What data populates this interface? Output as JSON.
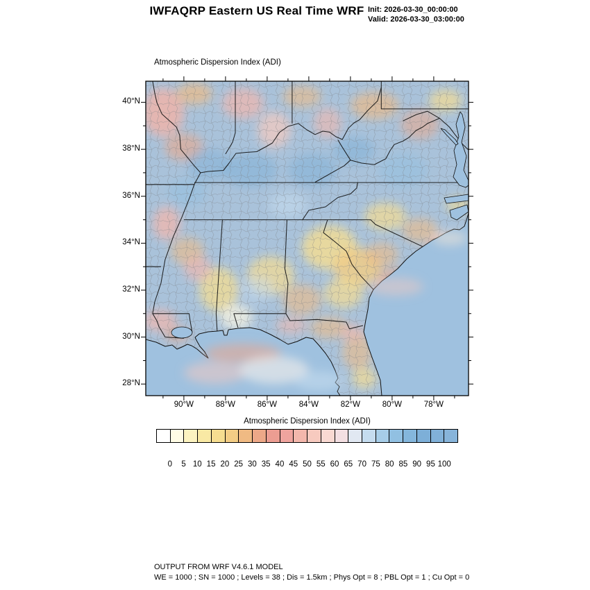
{
  "header": {
    "title": "IWFAQRP Eastern US Real Time WRF",
    "init_label": "Init: 2026-03-30_00:00:00",
    "valid_label": "Valid: 2026-03-30_03:00:00"
  },
  "map": {
    "subtitle": "Atmospheric Dispersion Index   (ADI)",
    "lat_labels": [
      "40°N",
      "38°N",
      "36°N",
      "34°N",
      "32°N",
      "30°N",
      "28°N"
    ],
    "lon_labels": [
      "90°W",
      "88°W",
      "86°W",
      "84°W",
      "82°W",
      "80°W",
      "78°W"
    ]
  },
  "colorbar": {
    "label": "Atmospheric Dispersion Index  (ADI)",
    "tick_labels": [
      "0",
      "5",
      "10",
      "15",
      "20",
      "25",
      "30",
      "35",
      "40",
      "45",
      "50",
      "55",
      "60",
      "65",
      "70",
      "75",
      "80",
      "85",
      "90",
      "95",
      "100"
    ],
    "colors": [
      "#ffffff",
      "#fffce5",
      "#fcf3c0",
      "#f9e9a4",
      "#f6dd90",
      "#f3cd85",
      "#f0ba83",
      "#eda888",
      "#ec9d92",
      "#efa49e",
      "#f3b7ac",
      "#f7cabf",
      "#f9d9d2",
      "#f3dfe2",
      "#e1e8f2",
      "#c5dcef",
      "#a7cde8",
      "#91c0e2",
      "#84b6dc",
      "#7dafd8",
      "#81b1d9",
      "#87b4da"
    ]
  },
  "footer": {
    "line1": "OUTPUT FROM WRF V4.6.1 MODEL",
    "line2": "WE = 1000 ; SN = 1000 ; Levels = 38 ; Dis = 1.5km ; Phys Opt = 8 ; PBL Opt = 1 ; Cu Opt = 0"
  },
  "chart_data": {
    "type": "heatmap",
    "title": "Atmospheric Dispersion Index (ADI)",
    "model_run": "IWFAQRP Eastern US Real Time WRF",
    "init_time": "2026-03-30_00:00:00",
    "valid_time": "2026-03-30_03:00:00",
    "x_axis": {
      "label": "longitude",
      "tick_labels": [
        "90°W",
        "88°W",
        "86°W",
        "84°W",
        "82°W",
        "80°W",
        "78°W"
      ],
      "range_deg_west": [
        91.8,
        76.3
      ]
    },
    "y_axis": {
      "label": "latitude",
      "tick_labels": [
        "40°N",
        "38°N",
        "36°N",
        "34°N",
        "32°N",
        "30°N",
        "28°N"
      ],
      "range_deg_north": [
        27.5,
        40.9
      ]
    },
    "colorbar_levels": [
      0,
      5,
      10,
      15,
      20,
      25,
      30,
      35,
      40,
      45,
      50,
      55,
      60,
      65,
      70,
      75,
      80,
      85,
      90,
      95,
      100
    ],
    "field_summary": [
      {
        "region": "Kentucky / middle Tennessee / Ohio Valley",
        "approx_adi": "75-100 (blue)"
      },
      {
        "region": "central Georgia / western South Carolina",
        "approx_adi": "5-25 (yellow)"
      },
      {
        "region": "coastal Carolinas and Georgia coast",
        "approx_adi": "30-55 (salmon/pink)"
      },
      {
        "region": "Mississippi / Louisiana / Alabama",
        "approx_adi": "mixed 10-55 (yellow-pink patches)"
      },
      {
        "region": "open Atlantic and offshore Gulf",
        "approx_adi": "75-100 (blue)"
      },
      {
        "region": "nearshore Gulf band south of Louisiana",
        "approx_adi": "30-60 (pink/pale)"
      },
      {
        "region": "Florida peninsula interior",
        "approx_adi": "15-40 (tan/yellow patches)"
      }
    ]
  }
}
